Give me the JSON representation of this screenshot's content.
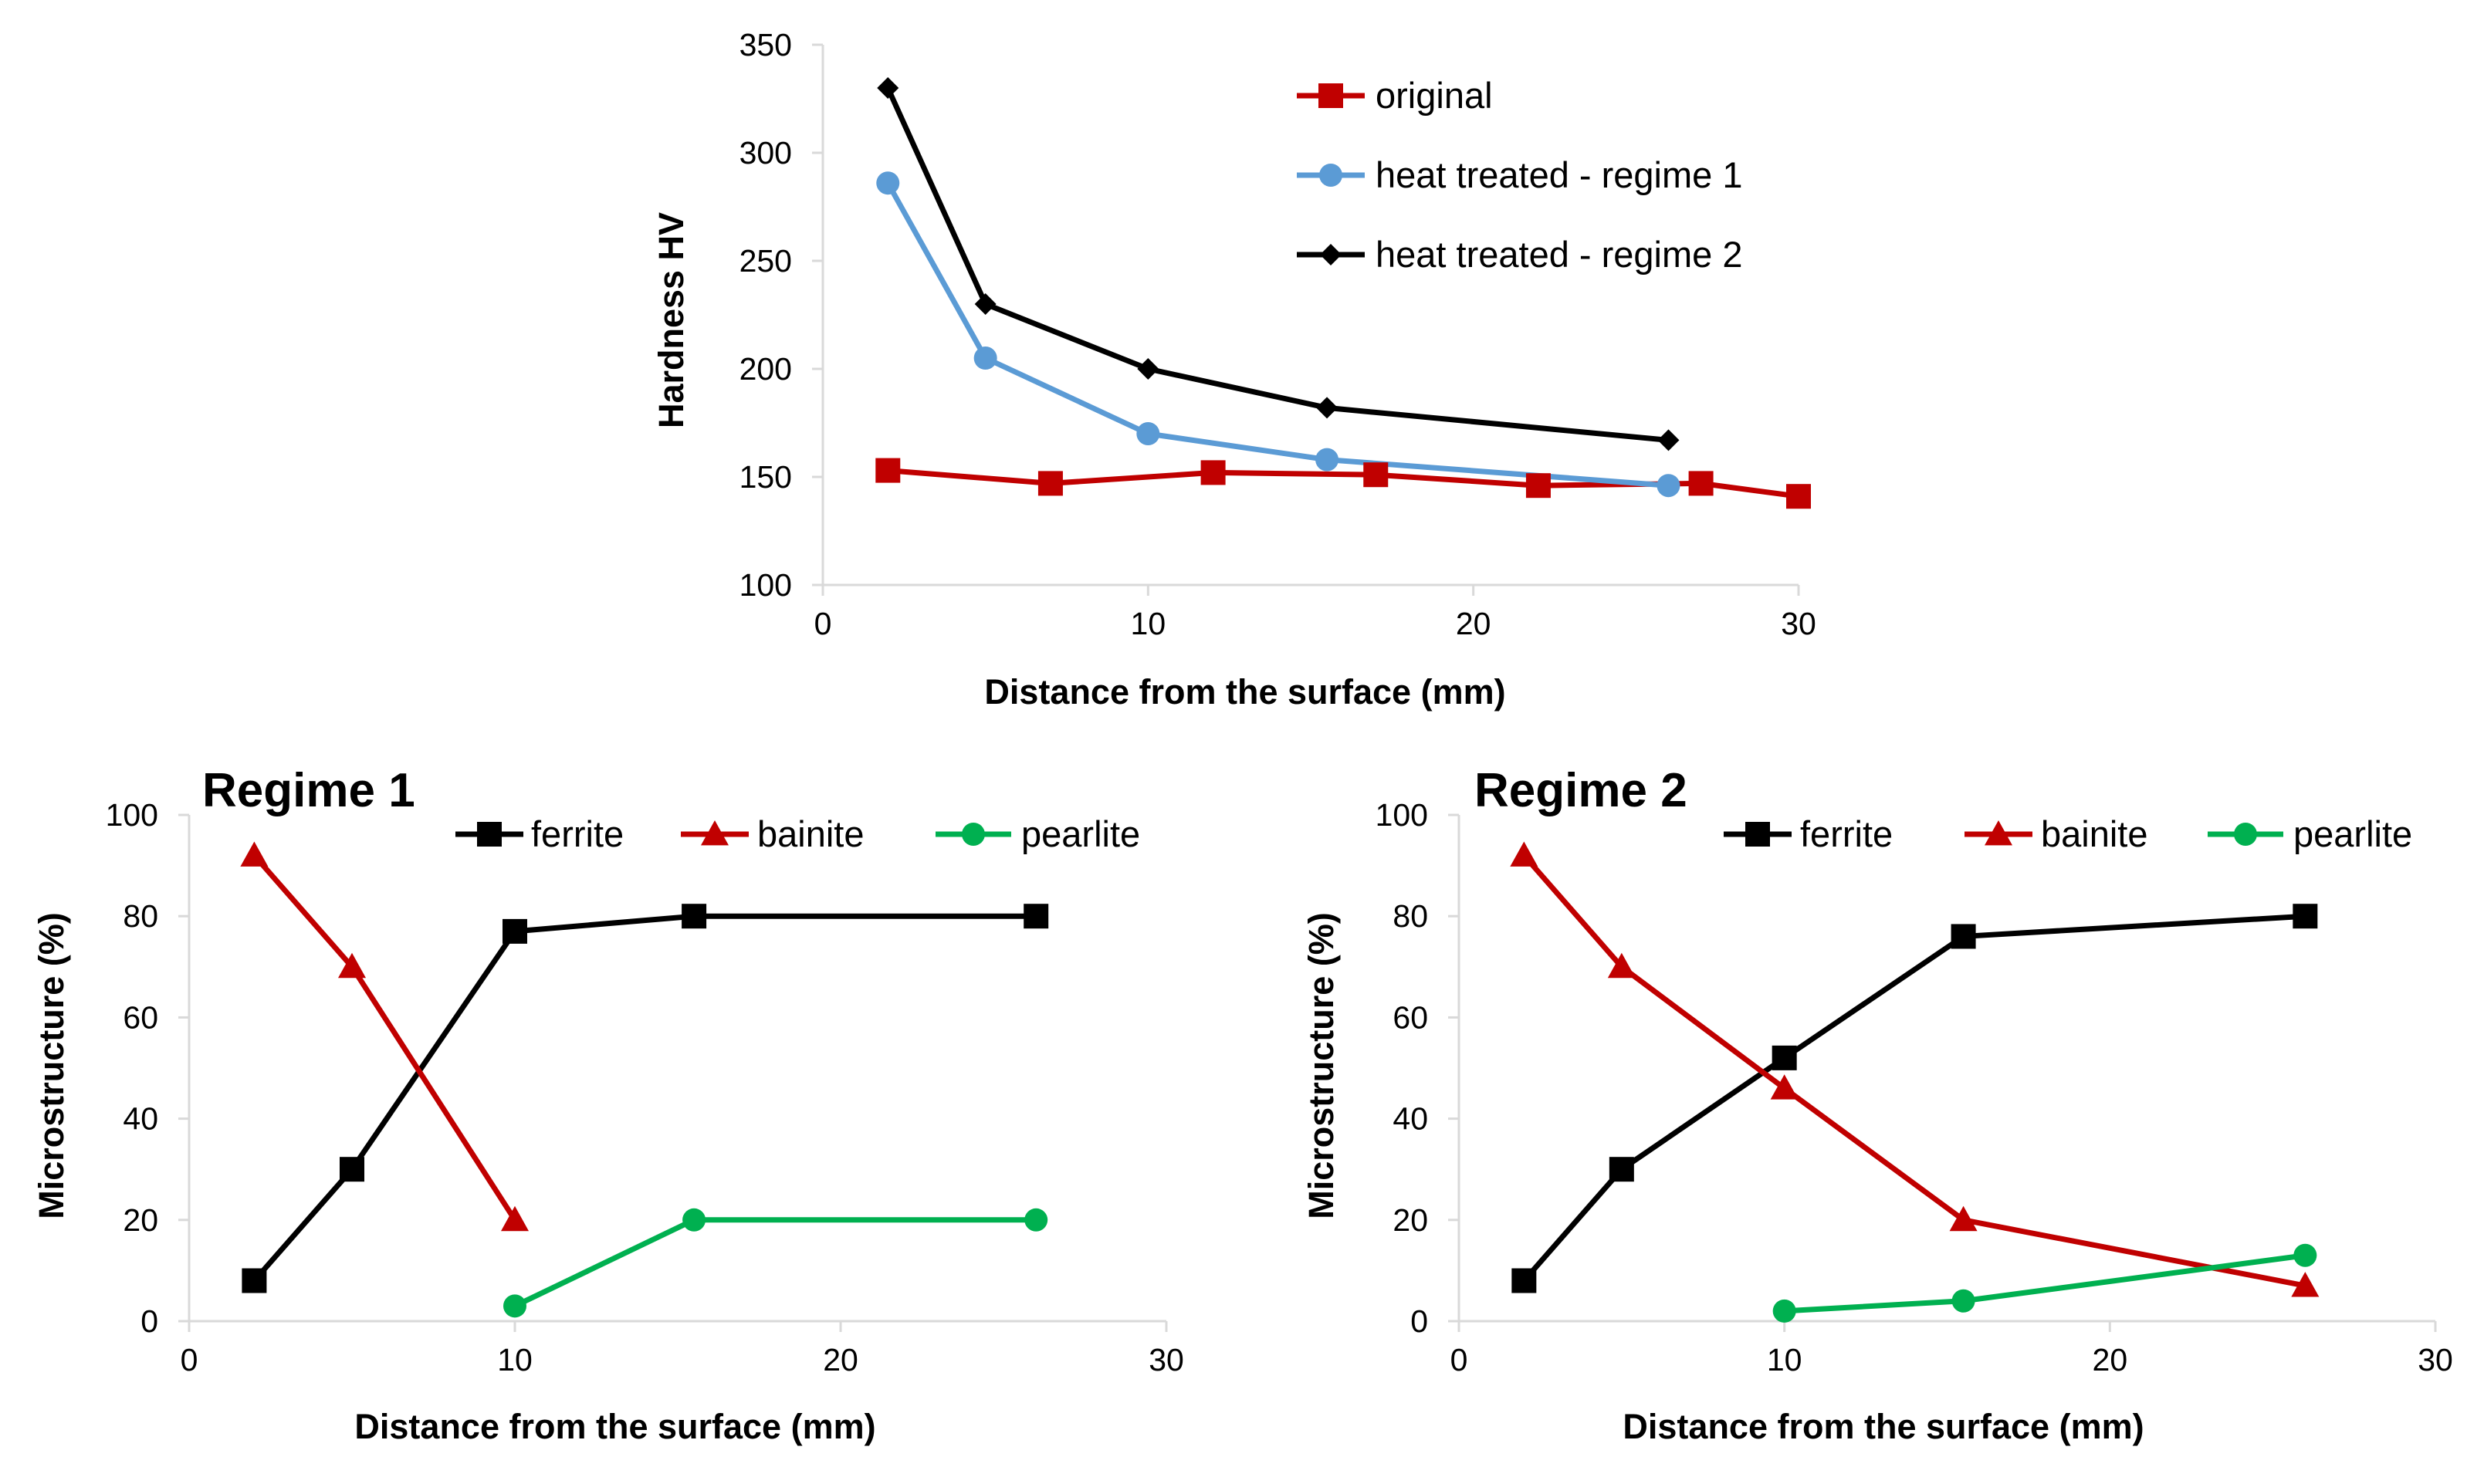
{
  "chart_data": [
    {
      "type": "line",
      "title": "",
      "xlabel": "Distance from the surface (mm)",
      "ylabel": "Hardness HV",
      "xlim": [
        0,
        30
      ],
      "ylim": [
        100,
        350
      ],
      "xticks": [
        0,
        10,
        20,
        30
      ],
      "yticks": [
        100,
        150,
        200,
        250,
        300,
        350
      ],
      "grid": false,
      "legend_position": "top-right",
      "series": [
        {
          "name": "original",
          "color": "#C00000",
          "marker": "square",
          "points": [
            [
              2,
              153
            ],
            [
              7,
              147
            ],
            [
              12,
              152
            ],
            [
              17,
              151
            ],
            [
              22,
              146
            ],
            [
              27,
              147
            ],
            [
              30,
              141
            ]
          ]
        },
        {
          "name": "heat treated - regime 1",
          "color": "#5B9BD5",
          "marker": "circle",
          "points": [
            [
              2,
              286
            ],
            [
              5,
              205
            ],
            [
              10,
              170
            ],
            [
              15.5,
              158
            ],
            [
              26,
              146
            ]
          ]
        },
        {
          "name": "heat treated - regime 2",
          "color": "#000000",
          "marker": "diamond",
          "points": [
            [
              2,
              330
            ],
            [
              5,
              230
            ],
            [
              10,
              200
            ],
            [
              15.5,
              182
            ],
            [
              26,
              167
            ]
          ]
        }
      ]
    },
    {
      "type": "line",
      "title": "Regime 1",
      "xlabel": "Distance from the surface (mm)",
      "ylabel": "Microstructure (%)",
      "xlim": [
        0,
        30
      ],
      "ylim": [
        0,
        100
      ],
      "xticks": [
        0,
        10,
        20,
        30
      ],
      "yticks": [
        0,
        20,
        40,
        60,
        80,
        100
      ],
      "grid": false,
      "legend_position": "top",
      "series": [
        {
          "name": "ferrite",
          "color": "#000000",
          "marker": "square",
          "points": [
            [
              2,
              8
            ],
            [
              5,
              30
            ],
            [
              10,
              77
            ],
            [
              15.5,
              80
            ],
            [
              26,
              80
            ]
          ]
        },
        {
          "name": "bainite",
          "color": "#C00000",
          "marker": "triangle",
          "points": [
            [
              2,
              92
            ],
            [
              5,
              70
            ],
            [
              10,
              20
            ]
          ]
        },
        {
          "name": "pearlite",
          "color": "#00B050",
          "marker": "circle",
          "points": [
            [
              10,
              3
            ],
            [
              15.5,
              20
            ],
            [
              26,
              20
            ]
          ]
        }
      ]
    },
    {
      "type": "line",
      "title": "Regime 2",
      "xlabel": "Distance from the surface (mm)",
      "ylabel": "Microstructure (%)",
      "xlim": [
        0,
        30
      ],
      "ylim": [
        0,
        100
      ],
      "xticks": [
        0,
        10,
        20,
        30
      ],
      "yticks": [
        0,
        20,
        40,
        60,
        80,
        100
      ],
      "grid": false,
      "legend_position": "top",
      "series": [
        {
          "name": "ferrite",
          "color": "#000000",
          "marker": "square",
          "points": [
            [
              2,
              8
            ],
            [
              5,
              30
            ],
            [
              10,
              52
            ],
            [
              15.5,
              76
            ],
            [
              26,
              80
            ]
          ]
        },
        {
          "name": "bainite",
          "color": "#C00000",
          "marker": "triangle",
          "points": [
            [
              2,
              92
            ],
            [
              5,
              70
            ],
            [
              10,
              46
            ],
            [
              15.5,
              20
            ],
            [
              26,
              7
            ]
          ]
        },
        {
          "name": "pearlite",
          "color": "#00B050",
          "marker": "circle",
          "points": [
            [
              10,
              2
            ],
            [
              15.5,
              4
            ],
            [
              26,
              13
            ]
          ]
        }
      ]
    }
  ]
}
